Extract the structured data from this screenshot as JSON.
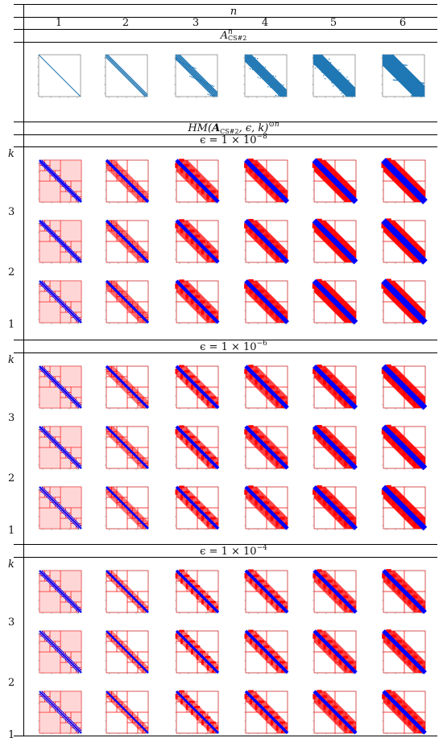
{
  "header": {
    "n_symbol": "n",
    "n_values": [
      "1",
      "2",
      "3",
      "4",
      "5",
      "6"
    ],
    "k_symbol": "k"
  },
  "matrix_row": {
    "label_base": "A",
    "label_sup": "n",
    "label_sub": "CS#2"
  },
  "hm_title": {
    "prefix": "HM(",
    "bold_a": "A",
    "sub": "CS#2",
    "args": ", ϵ, k)",
    "sup": "⊙n"
  },
  "epsilon_blocks": [
    {
      "label_prefix": "ϵ = 1 × 10",
      "exponent": "−8",
      "k_labels": [
        "3",
        "2",
        "1"
      ],
      "density": 1.0
    },
    {
      "label_prefix": "ϵ = 1 × 10",
      "exponent": "−6",
      "k_labels": [
        "3",
        "2",
        "1"
      ],
      "density": 0.8
    },
    {
      "label_prefix": "ϵ = 1 × 10",
      "exponent": "−4",
      "k_labels": [
        "3",
        "2",
        "1"
      ],
      "density": 0.6
    }
  ],
  "colors": {
    "sparsity": "#1f77b4",
    "dense_block": "#0000ff",
    "lowrank_block": "#ff0000",
    "lowrank_fill": "#ffd6d6"
  }
}
